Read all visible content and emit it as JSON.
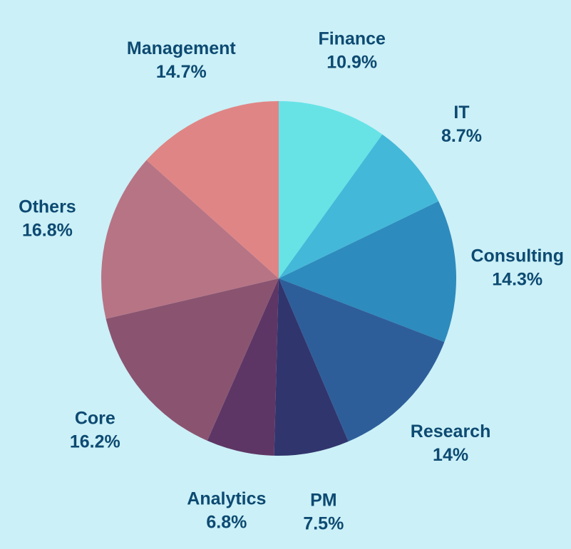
{
  "chart_data": {
    "type": "pie",
    "categories": [
      "Finance",
      "IT",
      "Consulting",
      "Research",
      "PM",
      "Analytics",
      "Core",
      "Others",
      "Management"
    ],
    "values": [
      10.9,
      8.7,
      14.3,
      14,
      7.5,
      6.8,
      16.2,
      16.8,
      14.7
    ],
    "value_labels": [
      "10.9%",
      "8.7%",
      "14.3%",
      "14%",
      "7.5%",
      "6.8%",
      "16.2%",
      "16.8%",
      "14.7%"
    ],
    "colors": [
      "#67e3e6",
      "#44b8d8",
      "#2e8bbd",
      "#2e5e9a",
      "#31356d",
      "#5e3665",
      "#8a5470",
      "#b77485",
      "#e08585"
    ]
  }
}
